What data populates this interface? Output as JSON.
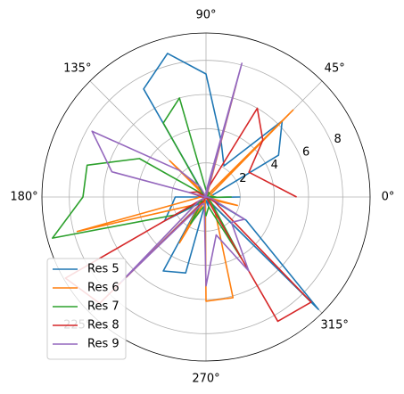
{
  "chart_data": {
    "type": "line",
    "projection": "polar",
    "grid": true,
    "legend": {
      "placement": "lower-left"
    },
    "theta_tick_labels": [
      "0°",
      "45°",
      "90°",
      "135°",
      "180°",
      "225°",
      "270°",
      "315°"
    ],
    "theta_ticks_deg": [
      0,
      45,
      90,
      135,
      180,
      225,
      270,
      315
    ],
    "r_ticks": [
      2,
      4,
      6,
      8
    ],
    "r_tick_labels": [
      "2",
      "4",
      "6",
      "8"
    ],
    "r_max": 9.6,
    "r_label_angle_deg": 22.5,
    "series": [
      {
        "name": "Res 5",
        "color": "#1f77b4",
        "theta_deg": [
          0,
          30,
          45,
          60,
          75,
          90,
          105,
          120,
          135,
          150,
          165,
          180,
          195,
          210,
          225,
          240,
          255,
          270,
          285,
          300,
          315,
          330,
          345,
          360
        ],
        "r": [
          0.2,
          4.9,
          6.3,
          2.1,
          3.4,
          7.2,
          8.7,
          7.3,
          0.1,
          0.0,
          0.0,
          1.8,
          2.1,
          2.8,
          0.5,
          5.0,
          4.6,
          0.2,
          0.6,
          0.2,
          9.3,
          2.7,
          0.1,
          2.0
        ]
      },
      {
        "name": "Res 6",
        "color": "#ff7f0e",
        "theta_deg": [
          0,
          30,
          45,
          60,
          75,
          90,
          105,
          120,
          135,
          150,
          165,
          180,
          195,
          210,
          225,
          240,
          255,
          270,
          285,
          300,
          315,
          330,
          345,
          360
        ],
        "r": [
          0.5,
          0.3,
          7.2,
          0.1,
          6.8,
          0.0,
          0.0,
          0.3,
          3.0,
          0.0,
          0.6,
          0.3,
          7.8,
          1.0,
          0.4,
          3.1,
          0.2,
          6.1,
          6.1,
          1.1,
          0.2,
          0.3,
          1.9,
          0.0
        ]
      },
      {
        "name": "Res 7",
        "color": "#2ca02c",
        "theta_deg": [
          0,
          30,
          45,
          60,
          75,
          90,
          105,
          120,
          135,
          150,
          165,
          180,
          195,
          210,
          225,
          240,
          255,
          270,
          285,
          300,
          315,
          330,
          345,
          360
        ],
        "r": [
          0.6,
          0.1,
          0.3,
          0.3,
          0.3,
          0.4,
          6.0,
          5.0,
          0.2,
          4.5,
          7.2,
          7.2,
          9.3,
          2.1,
          0.3,
          1.8,
          0.6,
          1.1,
          0.6,
          4.2,
          0.4,
          0.0,
          0.1,
          1.5
        ]
      },
      {
        "name": "Res 8",
        "color": "#d62728",
        "theta_deg": [
          0,
          30,
          45,
          60,
          75,
          90,
          105,
          120,
          135,
          150,
          165,
          180,
          195,
          210,
          225,
          240,
          255,
          270,
          285,
          300,
          315,
          330,
          345,
          360
        ],
        "r": [
          5.3,
          2.9,
          4.7,
          6.0,
          0.6,
          0.0,
          0.0,
          0.0,
          0.0,
          0.6,
          1.0,
          0.2,
          0.0,
          9.5,
          8.8,
          0.3,
          0.0,
          0.0,
          0.0,
          8.4,
          8.7,
          0.6,
          0.1,
          0.0
        ]
      },
      {
        "name": "Res 9",
        "color": "#9467bd",
        "theta_deg": [
          0,
          30,
          45,
          60,
          75,
          90,
          105,
          120,
          135,
          150,
          165,
          180,
          195,
          210,
          225,
          240,
          255,
          270,
          285,
          300,
          315,
          330,
          345,
          360
        ],
        "r": [
          0.2,
          0.0,
          0.0,
          0.0,
          8.1,
          0.3,
          0.0,
          0.7,
          2.2,
          7.7,
          5.7,
          0.0,
          0.0,
          0.5,
          7.0,
          0.5,
          0.4,
          5.2,
          2.3,
          5.0,
          2.1,
          2.6,
          0.3,
          0.0
        ]
      }
    ]
  }
}
